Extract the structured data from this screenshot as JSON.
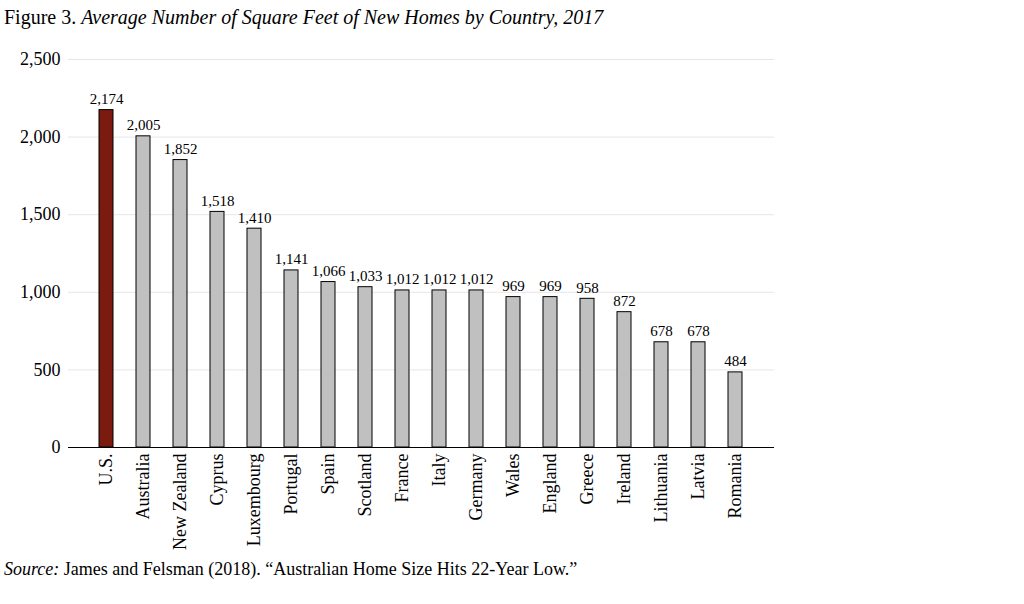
{
  "chart_data": {
    "type": "bar",
    "title": "Figure 3. Average Number of Square Feet of New Homes by Country, 2017",
    "caption": "Source: James and Felsman (2018). “Australian Home Size Hits 22-Year Low.”",
    "categories": [
      "U.S.",
      "Australia",
      "New Zealand",
      "Cyprus",
      "Luxembourg",
      "Portugal",
      "Spain",
      "Scotland",
      "France",
      "Italy",
      "Germany",
      "Wales",
      "England",
      "Greece",
      "Ireland",
      "Lithuania",
      "Latvia",
      "Romania"
    ],
    "values": [
      2174,
      2005,
      1852,
      1518,
      1410,
      1141,
      1066,
      1033,
      1012,
      1012,
      1012,
      969,
      969,
      958,
      872,
      678,
      678,
      484
    ],
    "value_labels": [
      "2,174",
      "2,005",
      "1,852",
      "1,518",
      "1,410",
      "1,141",
      "1,066",
      "1,033",
      "1,012",
      "1,012",
      "1,012",
      "969",
      "969",
      "958",
      "872",
      "678",
      "678",
      "484"
    ],
    "colors": [
      "#7b1a0e",
      "#c0c0c0",
      "#c0c0c0",
      "#c0c0c0",
      "#c0c0c0",
      "#c0c0c0",
      "#c0c0c0",
      "#c0c0c0",
      "#c0c0c0",
      "#c0c0c0",
      "#c0c0c0",
      "#c0c0c0",
      "#c0c0c0",
      "#c0c0c0",
      "#c0c0c0",
      "#c0c0c0",
      "#c0c0c0",
      "#c0c0c0"
    ],
    "ylim": [
      0,
      2500
    ],
    "yticks": [
      0,
      500,
      {
        "value": 1000,
        "label": "1,000"
      },
      {
        "value": 1500,
        "label": "1,500"
      },
      {
        "value": 2000,
        "label": "2,000"
      },
      {
        "value": 2500,
        "label": "2,500"
      }
    ],
    "grid": true,
    "data_labels": true
  }
}
